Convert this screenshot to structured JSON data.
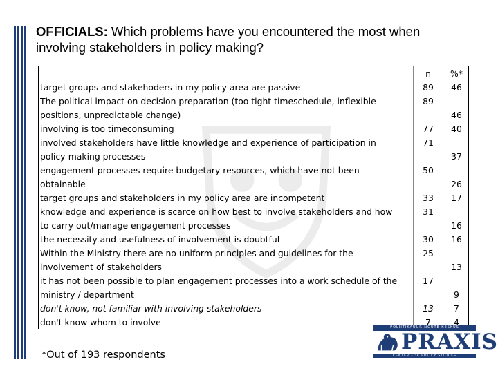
{
  "title": {
    "bold": "OFFICIALS:",
    "rest": " Which problems have you encountered the most when involving stakeholders in policy making?"
  },
  "headers": {
    "n": "n",
    "pct": "%*"
  },
  "rows": [
    {
      "text": "target groups and stakehoders in my policy area are passive",
      "italic": false
    },
    {
      "text": "The political impact on decision preparation (too tight timeschedule, inflexible",
      "italic": false
    },
    {
      "text": "positions, unpredictable change)",
      "italic": false
    },
    {
      "text": "involving is too timeconsuming",
      "italic": false
    },
    {
      "text": "involved stakeholders have little knowledge and experience of participation in",
      "italic": false
    },
    {
      "text": "policy-making processes",
      "italic": false
    },
    {
      "text": "engagement processes require budgetary resources, which have not been",
      "italic": false
    },
    {
      "text": "obtainable",
      "italic": false
    },
    {
      "text": "target groups and stakeholders in my policy area are incompetent",
      "italic": false
    },
    {
      "text": "knowledge and experience is scarce on how best to involve stakeholders and how",
      "italic": false
    },
    {
      "text": "to carry out/manage engagement processes",
      "italic": false
    },
    {
      "text": "the necessity and usefulness of involvement is doubtful",
      "italic": false
    },
    {
      "text": "Within the Ministry there are no uniform principles and guidelines for the",
      "italic": false
    },
    {
      "text": "involvement of stakeholders",
      "italic": false
    },
    {
      "text": "it has not been possible to plan engagement processes into a work schedule of the",
      "italic": false
    },
    {
      "text": "ministry / department",
      "italic": false
    },
    {
      "text": "don't know, not familiar with involving stakeholders",
      "italic": true
    },
    {
      "text": "don't know whom to involve",
      "italic": false
    }
  ],
  "n_values": [
    "89",
    "89",
    "77",
    "71",
    "50",
    "33",
    "31",
    "30",
    "25",
    "17",
    "13",
    "7"
  ],
  "pct_values": [
    "46",
    "46",
    "40",
    "37",
    "26",
    "17",
    "16",
    "16",
    "13",
    "9",
    "7",
    "4"
  ],
  "footnote": "*Out of 193 respondents",
  "logo": {
    "word": "PRAXIS",
    "top_strip": "POLIITIKAUURINGUTE KESKUS",
    "bottom_strip": "CENTER FOR POLICY STUDIES"
  }
}
